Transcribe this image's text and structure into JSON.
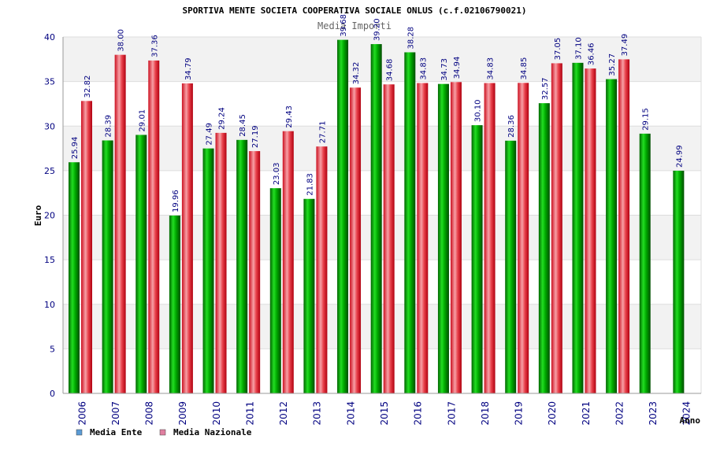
{
  "chart_data": {
    "type": "bar",
    "title": "SPORTIVA MENTE SOCIETA COOPERATIVA SOCIALE ONLUS (c.f.02106790021)",
    "subtitle": "Media Importi",
    "xlabel": "Anno",
    "ylabel": "Euro",
    "ylim": [
      0,
      40
    ],
    "yticks": [
      0,
      5,
      10,
      15,
      20,
      25,
      30,
      35,
      40
    ],
    "grid": true,
    "legend_position": "bottom-left",
    "categories": [
      "2006",
      "2007",
      "2008",
      "2009",
      "2010",
      "2011",
      "2012",
      "2013",
      "2014",
      "2015",
      "2016",
      "2017",
      "2018",
      "2019",
      "2020",
      "2021",
      "2022",
      "2023",
      "2024"
    ],
    "series": [
      {
        "name": "Media Ente",
        "color": "#00aa00",
        "legend_color": "#5b9bd5",
        "values": [
          25.94,
          28.39,
          29.01,
          19.96,
          27.49,
          28.45,
          23.03,
          21.83,
          39.68,
          39.2,
          38.28,
          34.73,
          30.1,
          28.36,
          32.57,
          37.1,
          35.27,
          29.15,
          24.99
        ],
        "labels": [
          "25.94",
          "28.39",
          "29.01",
          "19.96",
          "27.49",
          "28.45",
          "23.03",
          "21.83",
          "39.68",
          "39.20",
          "38.28",
          "34.73",
          "30.10",
          "28.36",
          "32.57",
          "37.10",
          "35.27",
          "29.15",
          "24.99"
        ]
      },
      {
        "name": "Media Nazionale",
        "color": "#e8303a",
        "legend_color": "#e07fa0",
        "values": [
          32.82,
          38.0,
          37.36,
          34.79,
          29.24,
          27.19,
          29.43,
          27.71,
          34.32,
          34.68,
          34.83,
          34.94,
          34.83,
          34.85,
          37.05,
          36.46,
          37.49,
          null,
          null
        ],
        "labels": [
          "32.82",
          "38.00",
          "37.36",
          "34.79",
          "29.24",
          "27.19",
          "29.43",
          "27.71",
          "34.32",
          "34.68",
          "34.83",
          "34.94",
          "34.83",
          "34.85",
          "37.05",
          "36.46",
          "37.49",
          "",
          ""
        ]
      }
    ]
  }
}
